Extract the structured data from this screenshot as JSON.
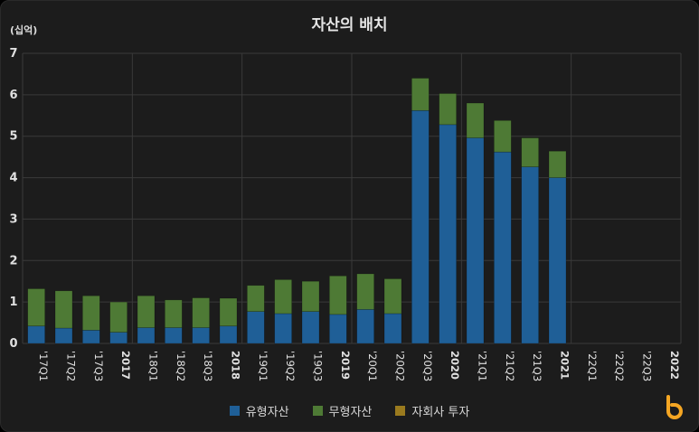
{
  "chart_data": {
    "type": "bar",
    "stacked": true,
    "title": "자산의 배치",
    "unit_label": "(십억)",
    "ylim": [
      0,
      7
    ],
    "yticks": [
      0,
      1,
      2,
      3,
      4,
      5,
      6,
      7
    ],
    "categories": [
      "'17Q1",
      "'17Q2",
      "'17Q3",
      "2017",
      "'18Q1",
      "'18Q2",
      "'18Q3",
      "2018",
      "'19Q1",
      "'19Q2",
      "'19Q3",
      "2019",
      "'20Q1",
      "'20Q2",
      "'20Q3",
      "2020",
      "'21Q1",
      "'21Q2",
      "'21Q3",
      "2021",
      "'22Q1",
      "'22Q2",
      "'22Q3",
      "2022"
    ],
    "bold_categories": [
      "2017",
      "2018",
      "2019",
      "2020",
      "2021",
      "2022"
    ],
    "series": [
      {
        "name": "유형자산",
        "color": "#1f5f97",
        "values": [
          0.42,
          0.37,
          0.32,
          0.27,
          0.38,
          0.38,
          0.38,
          0.42,
          0.77,
          0.72,
          0.77,
          0.7,
          0.82,
          0.72,
          5.62,
          5.28,
          4.96,
          4.62,
          4.26,
          4.0,
          null,
          null,
          null,
          null
        ]
      },
      {
        "name": "무형자산",
        "color": "#4e7a35",
        "values": [
          0.9,
          0.9,
          0.83,
          0.73,
          0.77,
          0.67,
          0.72,
          0.67,
          0.63,
          0.82,
          0.73,
          0.93,
          0.86,
          0.84,
          0.78,
          0.75,
          0.84,
          0.76,
          0.7,
          0.64,
          null,
          null,
          null,
          null
        ]
      },
      {
        "name": "자회사 투자",
        "color": "#9a7a1e",
        "values": [
          0,
          0,
          0,
          0,
          0,
          0,
          0,
          0,
          0,
          0,
          0,
          0,
          0,
          0,
          0,
          0,
          0,
          0,
          0,
          0,
          null,
          null,
          null,
          null
        ]
      }
    ],
    "grid": true,
    "legend_position": "bottom"
  }
}
